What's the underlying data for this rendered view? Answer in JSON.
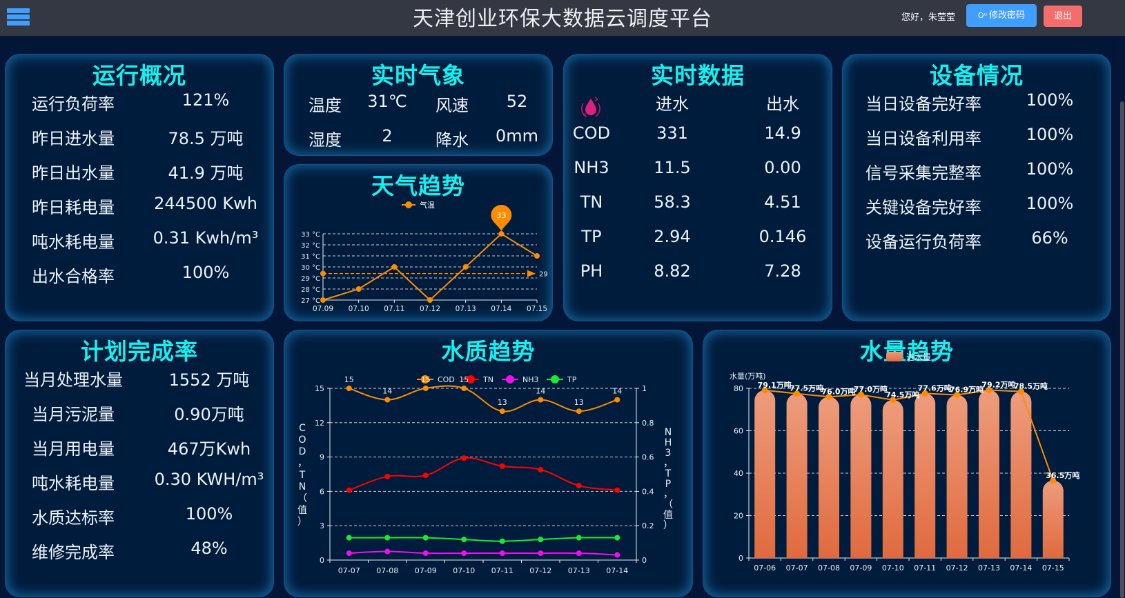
{
  "header": {
    "title": "天津创业环保大数据云调度平台",
    "greeting": "您好，朱莹莹",
    "change_password": "修改密码",
    "logout": "退出",
    "key_icon": "Oᵘ"
  },
  "operation": {
    "title": "运行概况",
    "rows": [
      {
        "label": "运行负荷率",
        "value": "121%"
      },
      {
        "label": "昨日进水量",
        "value": "78.5 万吨"
      },
      {
        "label": "昨日出水量",
        "value": "41.9 万吨"
      },
      {
        "label": "昨日耗电量",
        "value": "244500 Kwh"
      },
      {
        "label": "吨水耗电量",
        "value": "0.31 Kwh/m³"
      },
      {
        "label": "出水合格率",
        "value": "100%"
      }
    ]
  },
  "weather": {
    "title": "实时气象",
    "temp_label": "温度",
    "temp_value": "31℃",
    "wind_label": "风速",
    "wind_value": "52",
    "humidity_label": "湿度",
    "humidity_value": "2",
    "rain_label": "降水",
    "rain_value": "0mm"
  },
  "realtime": {
    "title": "实时数据",
    "col_in": "进水",
    "col_out": "出水",
    "rows": [
      {
        "name": "COD",
        "in": "331",
        "out": "14.9"
      },
      {
        "name": "NH3",
        "in": "11.5",
        "out": "0.00"
      },
      {
        "name": "TN",
        "in": "58.3",
        "out": "4.51"
      },
      {
        "name": "TP",
        "in": "2.94",
        "out": "0.146"
      },
      {
        "name": "PH",
        "in": "8.82",
        "out": "7.28"
      }
    ]
  },
  "equipment": {
    "title": "设备情况",
    "rows": [
      {
        "label": "当日设备完好率",
        "value": "100%"
      },
      {
        "label": "当日设备利用率",
        "value": "100%"
      },
      {
        "label": "信号采集完整率",
        "value": "100%"
      },
      {
        "label": "关键设备完好率",
        "value": "100%"
      },
      {
        "label": "设备运行负荷率",
        "value": "66%"
      }
    ]
  },
  "plan": {
    "title": "计划完成率",
    "rows": [
      {
        "label": "当月处理水量",
        "value": "1552 万吨"
      },
      {
        "label": "当月污泥量",
        "value": "0.90万吨"
      },
      {
        "label": "当月用电量",
        "value": "467万Kwh"
      },
      {
        "label": "吨水耗电量",
        "value": "0.30 KWH/m³"
      },
      {
        "label": "水质达标率",
        "value": "100%"
      },
      {
        "label": "维修完成率",
        "value": "48%"
      }
    ]
  },
  "weather_trend": {
    "title": "天气趋势"
  },
  "quality_trend": {
    "title": "水质趋势"
  },
  "volume_trend": {
    "title": "水量趋势"
  },
  "chart_data": [
    {
      "type": "line",
      "title": "天气趋势",
      "legend": [
        "气温"
      ],
      "categories": [
        "07.09",
        "07.10",
        "07.11",
        "07.12",
        "07.13",
        "07.14",
        "07.15"
      ],
      "series": [
        {
          "name": "气温",
          "values": [
            27,
            28,
            30,
            27,
            30,
            33,
            31
          ],
          "color": "#ff8c00"
        }
      ],
      "yticks": [
        "27 °C",
        "28 °C",
        "29 °C",
        "30 °C",
        "31 °C",
        "32 °C",
        "33 °C"
      ],
      "ylim": [
        27,
        33
      ],
      "mark_point": {
        "label": "33",
        "category": "07.14"
      },
      "mark_line": {
        "type": "average",
        "value": 29.4,
        "label": "29"
      }
    },
    {
      "type": "line",
      "title": "水质趋势",
      "legend": [
        "COD",
        "TN",
        "NH3",
        "TP"
      ],
      "categories": [
        "07-07",
        "07-08",
        "07-09",
        "07-10",
        "07-11",
        "07-12",
        "07-13",
        "07-14"
      ],
      "series": [
        {
          "name": "COD",
          "axis": "left",
          "values": [
            15,
            14,
            15,
            15,
            13,
            14,
            13,
            14
          ],
          "color": "#ff8c00",
          "labels": true
        },
        {
          "name": "TN",
          "axis": "left",
          "values": [
            6.1,
            7.3,
            7.4,
            8.9,
            8.2,
            7.9,
            6.5,
            6.1
          ],
          "color": "#ff0000"
        },
        {
          "name": "NH3",
          "axis": "right",
          "values": [
            0.04,
            0.05,
            0.04,
            0.04,
            0.04,
            0.04,
            0.04,
            0.03
          ],
          "color": "#ee11ee"
        },
        {
          "name": "TP",
          "axis": "right",
          "values": [
            0.13,
            0.13,
            0.13,
            0.12,
            0.11,
            0.12,
            0.13,
            0.13
          ],
          "color": "#18e838"
        }
      ],
      "ylabel": "COD，TN（值）",
      "y2label": "NH3，TP，（值）",
      "ylim": [
        0,
        15
      ],
      "yticks": [
        "0",
        "3",
        "6",
        "9",
        "12",
        "15"
      ],
      "y2lim": [
        0,
        1
      ],
      "y2ticks": [
        "0",
        "0.2",
        "0.4",
        "0.6",
        "0.8",
        "1"
      ]
    },
    {
      "type": "bar",
      "title": "水量趋势",
      "legend": [
        "进水量"
      ],
      "ylabel": "水量(万吨)",
      "categories": [
        "07-06",
        "07-07",
        "07-08",
        "07-09",
        "07-10",
        "07-11",
        "07-12",
        "07-13",
        "07-14",
        "07-15"
      ],
      "series": [
        {
          "name": "进水量",
          "values": [
            79.1,
            77.5,
            76.0,
            77.0,
            74.5,
            77.6,
            76.9,
            79.2,
            78.5,
            36.5
          ],
          "color": "#e8855c"
        }
      ],
      "data_labels": [
        "79.1万吨",
        "77.5万吨",
        "76.0万吨",
        "77.0万吨",
        "74.5万吨",
        "77.6万吨",
        "76.9万吨",
        "79.2万吨",
        "78.5万吨",
        "36.5万吨"
      ],
      "ylim": [
        0,
        80
      ],
      "yticks": [
        "0",
        "20",
        "40",
        "60",
        "80"
      ]
    }
  ]
}
